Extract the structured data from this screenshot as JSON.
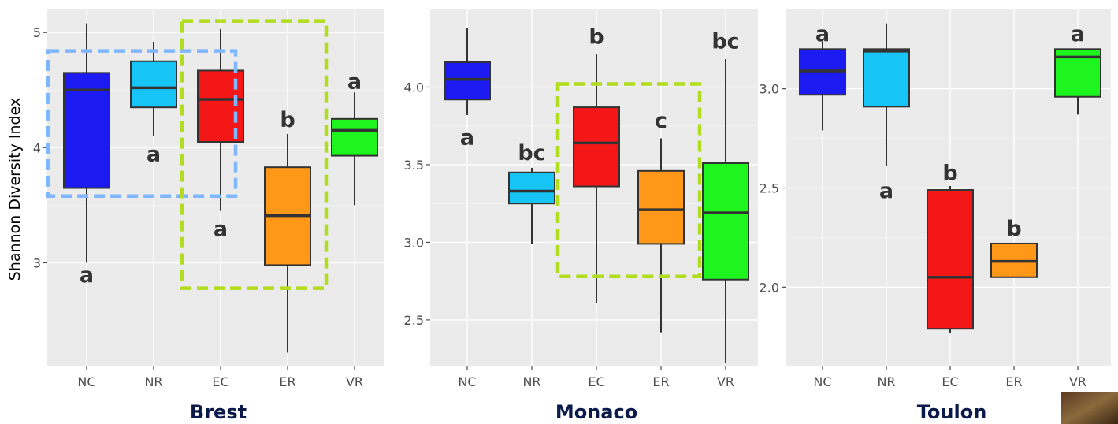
{
  "y_axis_label": "Shannon Diversity Index",
  "colors": {
    "NC": "#1b1bf2",
    "NR": "#16c4f5",
    "EC": "#f41717",
    "ER": "#ff9718",
    "VR": "#1ef41e"
  },
  "chart_data": [
    {
      "type": "box",
      "site": "Brest",
      "categories": [
        "NC",
        "NR",
        "EC",
        "ER",
        "VR"
      ],
      "ylabel": "Shannon Diversity Index",
      "ylim": [
        2.1,
        5.2
      ],
      "yticks": [
        3,
        4,
        5
      ],
      "ytick_labels": [
        "3",
        "4",
        "5"
      ],
      "grid": true,
      "boxes": [
        {
          "category": "NC",
          "min": 3.0,
          "q1": 3.65,
          "median": 4.5,
          "q3": 4.65,
          "max": 5.08,
          "letter": "a",
          "letter_y": 2.9
        },
        {
          "category": "NR",
          "min": 4.1,
          "q1": 4.35,
          "median": 4.52,
          "q3": 4.75,
          "max": 4.92,
          "letter": "a",
          "letter_y": 3.95
        },
        {
          "category": "EC",
          "min": 3.45,
          "q1": 4.05,
          "median": 4.42,
          "q3": 4.67,
          "max": 5.03,
          "letter": "a",
          "letter_y": 3.3
        },
        {
          "category": "ER",
          "min": 2.22,
          "q1": 2.98,
          "median": 3.41,
          "q3": 3.83,
          "max": 4.12,
          "letter": "b",
          "letter_y": 4.25
        },
        {
          "category": "VR",
          "min": 3.5,
          "q1": 3.93,
          "median": 4.15,
          "q3": 4.25,
          "max": 4.48,
          "letter": "a",
          "letter_y": 4.58
        }
      ],
      "highlights": [
        {
          "color": "#7fb7ff",
          "x_from": "NC",
          "x_to": "EC",
          "y_from": 3.58,
          "y_to": 4.84
        },
        {
          "color": "#b2dd1f",
          "x_from": "EC",
          "x_to": "ER",
          "y_from": 2.78,
          "y_to": 5.1
        }
      ]
    },
    {
      "type": "box",
      "site": "Monaco",
      "categories": [
        "NC",
        "NR",
        "EC",
        "ER",
        "VR"
      ],
      "ylim": [
        2.2,
        4.5
      ],
      "yticks": [
        2.5,
        3.0,
        3.5,
        4.0
      ],
      "ytick_labels": [
        "2.5",
        "3.0",
        "3.5",
        "4.0"
      ],
      "grid": true,
      "boxes": [
        {
          "category": "NC",
          "min": 3.82,
          "q1": 3.92,
          "median": 4.05,
          "q3": 4.16,
          "max": 4.38,
          "letter": "a",
          "letter_y": 3.68
        },
        {
          "category": "NR",
          "min": 2.99,
          "q1": 3.25,
          "median": 3.33,
          "q3": 3.45,
          "max": 3.48,
          "letter": "bc",
          "letter_y": 3.58
        },
        {
          "category": "EC",
          "min": 2.61,
          "q1": 3.36,
          "median": 3.64,
          "q3": 3.87,
          "max": 4.21,
          "letter": "b",
          "letter_y": 4.33
        },
        {
          "category": "ER",
          "min": 2.42,
          "q1": 2.99,
          "median": 3.21,
          "q3": 3.46,
          "max": 3.67,
          "letter": "c",
          "letter_y": 3.79
        },
        {
          "category": "VR",
          "min": 2.22,
          "q1": 2.76,
          "median": 3.19,
          "q3": 3.51,
          "max": 4.18,
          "letter": "bc",
          "letter_y": 4.3
        }
      ],
      "highlights": [
        {
          "color": "#b2dd1f",
          "x_from": "EC",
          "x_to": "ER",
          "y_from": 2.78,
          "y_to": 4.02
        }
      ]
    },
    {
      "type": "box",
      "site": "Toulon",
      "categories": [
        "NC",
        "NR",
        "EC",
        "ER",
        "VR"
      ],
      "ylim": [
        1.6,
        3.4
      ],
      "yticks": [
        2.0,
        2.5,
        3.0
      ],
      "ytick_labels": [
        "2.0",
        "2.5",
        "3.0"
      ],
      "grid": true,
      "boxes": [
        {
          "category": "NC",
          "min": 2.79,
          "q1": 2.97,
          "median": 3.09,
          "q3": 3.2,
          "max": 3.24,
          "letter": "a",
          "letter_y": 3.28
        },
        {
          "category": "NR",
          "min": 2.61,
          "q1": 2.91,
          "median": 3.19,
          "q3": 3.2,
          "max": 3.33,
          "letter": "a",
          "letter_y": 2.49
        },
        {
          "category": "EC",
          "min": 1.77,
          "q1": 1.79,
          "median": 2.05,
          "q3": 2.49,
          "max": 2.51,
          "letter": "b",
          "letter_y": 2.58
        },
        {
          "category": "ER",
          "min": 2.05,
          "q1": 2.05,
          "median": 2.13,
          "q3": 2.22,
          "max": 2.22,
          "letter": "b",
          "letter_y": 2.3
        },
        {
          "category": "VR",
          "min": 2.87,
          "q1": 2.96,
          "median": 3.16,
          "q3": 3.2,
          "max": 3.2,
          "letter": "a",
          "letter_y": 3.28
        }
      ],
      "highlights": []
    }
  ]
}
